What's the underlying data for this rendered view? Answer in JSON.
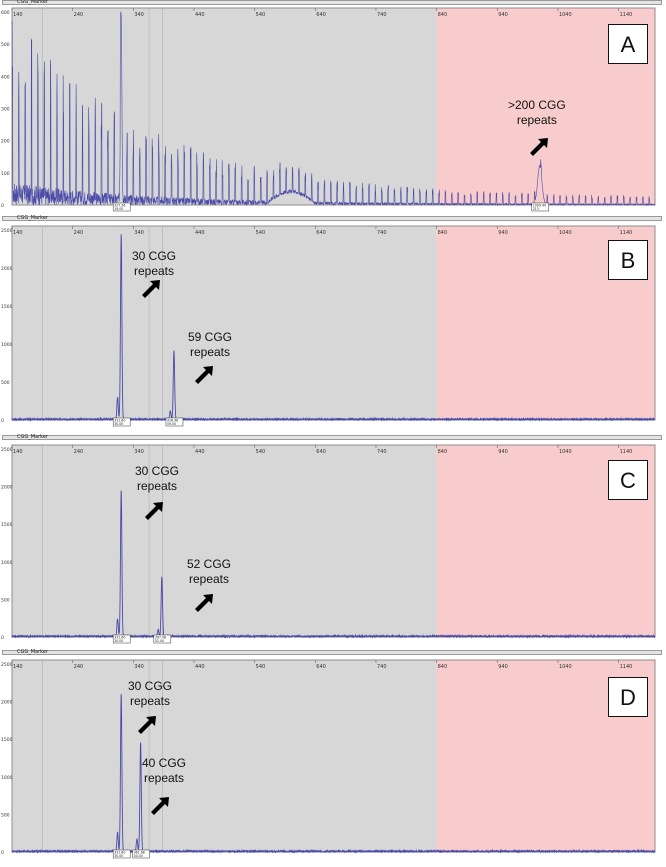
{
  "figure": {
    "marker_name": "CGG_Marker",
    "colors": {
      "trace": "#4a4aa8",
      "gray_zone": "#d7d7d7",
      "pink_zone": "#f8cccc",
      "frame": "#8c8c8c"
    }
  },
  "chart_data": [
    {
      "type": "line",
      "panel": "A",
      "title": "",
      "xlabel": "",
      "ylabel": "",
      "xlim": [
        140,
        1200
      ],
      "ylim": [
        0,
        600
      ],
      "x_ticks": [
        140,
        240,
        340,
        440,
        540,
        640,
        740,
        840,
        940,
        1040,
        1140
      ],
      "y_ticks": [
        0,
        100,
        200,
        300,
        400,
        500,
        600
      ],
      "shaded_regions": [
        {
          "from": 140,
          "to": 840,
          "color": "gray"
        },
        {
          "from": 840,
          "to": 1200,
          "color": "pink"
        }
      ],
      "peaks": [
        {
          "x": 320,
          "height": 590
        },
        {
          "x": 1010,
          "height": 120
        }
      ],
      "annotations": [
        {
          "text": ">200 CGG\nrepeats",
          "x": 1010
        }
      ],
      "peak_boxes": [
        {
          "text": "327.36\n19.00",
          "x": 320
        },
        {
          "text": "1009.44\n213",
          "x": 1010
        }
      ]
    },
    {
      "type": "line",
      "panel": "B",
      "title": "",
      "xlabel": "",
      "ylabel": "",
      "xlim": [
        140,
        1200
      ],
      "ylim": [
        0,
        2500
      ],
      "x_ticks": [
        140,
        240,
        340,
        440,
        540,
        640,
        740,
        840,
        940,
        1040,
        1140
      ],
      "y_ticks": [
        0,
        500,
        1000,
        1500,
        2000,
        2500
      ],
      "shaded_regions": [
        {
          "from": 140,
          "to": 840,
          "color": "gray"
        },
        {
          "from": 840,
          "to": 1200,
          "color": "pink"
        }
      ],
      "peaks": [
        {
          "x": 320,
          "height": 2450
        },
        {
          "x": 407,
          "height": 900
        }
      ],
      "annotations": [
        {
          "text": "30 CGG\nrepeats",
          "x": 320
        },
        {
          "text": "59 CGG\nrepeats",
          "x": 407
        }
      ],
      "peak_boxes": [
        {
          "text": "331.60\n30.00",
          "x": 320
        },
        {
          "text": "418.48\n59.00",
          "x": 407
        }
      ]
    },
    {
      "type": "line",
      "panel": "C",
      "title": "",
      "xlabel": "",
      "ylabel": "",
      "xlim": [
        140,
        1200
      ],
      "ylim": [
        0,
        2500
      ],
      "x_ticks": [
        140,
        240,
        340,
        440,
        540,
        640,
        740,
        840,
        940,
        1040,
        1140
      ],
      "y_ticks": [
        0,
        500,
        1000,
        1500,
        2000,
        2500
      ],
      "shaded_regions": [
        {
          "from": 140,
          "to": 840,
          "color": "gray"
        },
        {
          "from": 840,
          "to": 1200,
          "color": "pink"
        }
      ],
      "peaks": [
        {
          "x": 320,
          "height": 1950
        },
        {
          "x": 387,
          "height": 800
        }
      ],
      "annotations": [
        {
          "text": "30 CGG\nrepeats",
          "x": 320
        },
        {
          "text": "52 CGG\nrepeats",
          "x": 387
        }
      ],
      "peak_boxes": [
        {
          "text": "331.60\n30.00",
          "x": 320
        },
        {
          "text": "397.48\n52.00",
          "x": 387
        }
      ]
    },
    {
      "type": "line",
      "panel": "D",
      "title": "",
      "xlabel": "",
      "ylabel": "",
      "xlim": [
        140,
        1200
      ],
      "ylim": [
        0,
        2500
      ],
      "x_ticks": [
        140,
        240,
        340,
        440,
        540,
        640,
        740,
        840,
        940,
        1040,
        1140
      ],
      "y_ticks": [
        0,
        500,
        1000,
        1500,
        2000,
        2500
      ],
      "shaded_regions": [
        {
          "from": 140,
          "to": 840,
          "color": "gray"
        },
        {
          "from": 840,
          "to": 1200,
          "color": "pink"
        }
      ],
      "peaks": [
        {
          "x": 320,
          "height": 2100
        },
        {
          "x": 352,
          "height": 1450
        }
      ],
      "annotations": [
        {
          "text": "30 CGG\nrepeats",
          "x": 320
        },
        {
          "text": "40 CGG\nrepeats",
          "x": 352
        }
      ],
      "peak_boxes": [
        {
          "text": "331.60\n30.00",
          "x": 320
        },
        {
          "text": "361.68\n40.00",
          "x": 352
        }
      ]
    }
  ]
}
